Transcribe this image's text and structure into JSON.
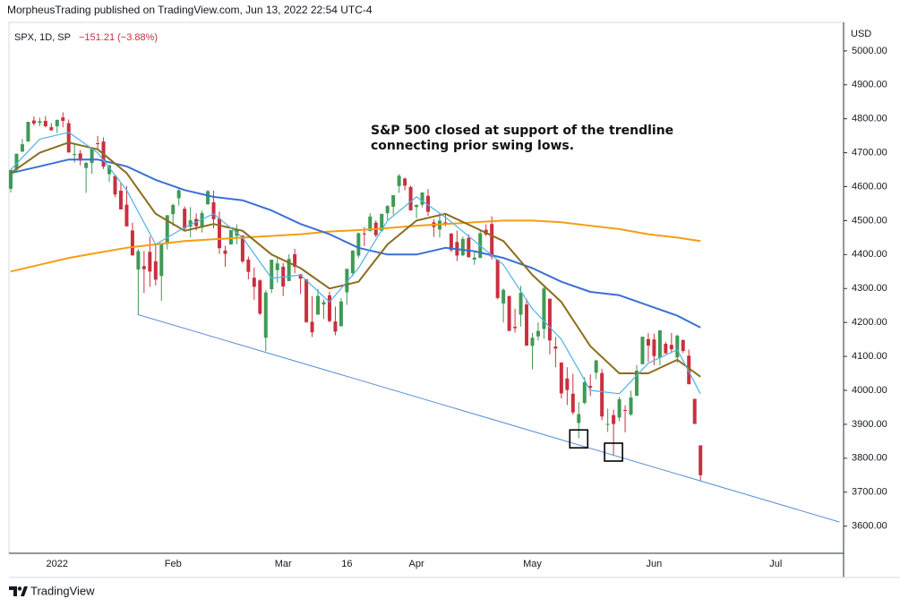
{
  "chart_data": {
    "type": "candlestick",
    "header": "MorpheusTrading published on TradingView.com, Jun 13, 2022 22:54 UTC-4",
    "symbol": "SPX, 1D, SP",
    "change": "−151.21 (−3.88%)",
    "currency": "USD",
    "brand": "TradingView",
    "annotation": {
      "lines": [
        "S&P 500 closed at support of the trendline",
        "connecting prior swing lows."
      ]
    },
    "categories": [
      null,
      null,
      null,
      null,
      null,
      null,
      null,
      null,
      "2022",
      null,
      null,
      null,
      null,
      null,
      null,
      null,
      null,
      null,
      null,
      null,
      null,
      null,
      null,
      null,
      null,
      null,
      null,
      null,
      "Feb",
      null,
      null,
      null,
      null,
      null,
      null,
      null,
      null,
      null,
      null,
      null,
      null,
      null,
      null,
      null,
      null,
      null,
      null,
      "Mar",
      null,
      null,
      null,
      null,
      null,
      null,
      null,
      null,
      null,
      null,
      "16",
      null,
      null,
      null,
      null,
      null,
      null,
      null,
      null,
      null,
      null,
      null,
      "Apr",
      null,
      null,
      null,
      null,
      null,
      null,
      null,
      null,
      null,
      null,
      null,
      null,
      null,
      null,
      null,
      null,
      null,
      null,
      null,
      "May",
      null,
      null,
      null,
      null,
      null,
      null,
      null,
      null,
      null,
      null,
      null,
      null,
      null,
      null,
      null,
      null,
      null,
      null,
      null,
      null,
      "Jun",
      null,
      null,
      null,
      null,
      null,
      null,
      null,
      null,
      null,
      null,
      null,
      null,
      null,
      null,
      null,
      null,
      null,
      null,
      null,
      null,
      "Jul",
      null,
      null,
      null,
      null,
      null,
      null,
      null,
      null,
      null,
      null,
      null
    ],
    "open": [
      4594,
      4650,
      4703,
      4733,
      4795,
      4788,
      4794,
      4775,
      4778,
      4804,
      4787,
      4693,
      4698,
      4655,
      4670,
      4728,
      4733,
      4637,
      4632,
      4588,
      4547,
      4471,
      4356,
      4366,
      4408,
      4380,
      4337,
      4431,
      4519,
      4566,
      4535,
      4482,
      4505,
      4480,
      4548,
      4554,
      4506,
      4412,
      4430,
      4455,
      4456,
      4385,
      4332,
      4324,
      4155,
      4298,
      4354,
      4364,
      4322,
      4401,
      4342,
      4327,
      4202,
      4223,
      4253,
      4280,
      4203,
      4189,
      4289,
      4345,
      4397,
      4462,
      4469,
      4494,
      4470,
      4522,
      4541,
      4602,
      4624,
      4599,
      4540,
      4547,
      4573,
      4495,
      4474,
      4495,
      4462,
      4437,
      4398,
      4449,
      4385,
      4390,
      4473,
      4490,
      4385,
      4256,
      4278,
      4187,
      4223,
      4253,
      4131,
      4159,
      4181,
      4270,
      4129,
      4082,
      4035,
      3990,
      3904,
      3963,
      4013,
      4052,
      4051,
      3900,
      3927,
      3920,
      3942,
      3929,
      3984,
      4077,
      4151,
      4150,
      4096,
      4137,
      4134,
      4097,
      4148,
      4102,
      3975,
      3838,
      null,
      null,
      null,
      null,
      null,
      null,
      null,
      null,
      null,
      null,
      null,
      null,
      null,
      null,
      null,
      null,
      null,
      null,
      null,
      null,
      null,
      null,
      null,
      null
    ],
    "high": [
      4651,
      4697,
      4740,
      4791,
      4807,
      4804,
      4808,
      4787,
      4797,
      4819,
      4798,
      4725,
      4708,
      4673,
      4714,
      4749,
      4745,
      4665,
      4632,
      4612,
      4602,
      4494,
      4417,
      4411,
      4453,
      4428,
      4432,
      4516,
      4550,
      4595,
      4542,
      4540,
      4521,
      4530,
      4590,
      4588,
      4527,
      4426,
      4472,
      4489,
      4456,
      4394,
      4362,
      4327,
      4295,
      4385,
      4389,
      4375,
      4401,
      4417,
      4343,
      4328,
      4277,
      4299,
      4268,
      4291,
      4247,
      4272,
      4358,
      4412,
      4465,
      4481,
      4522,
      4501,
      4520,
      4546,
      4575,
      4637,
      4627,
      4603,
      4548,
      4583,
      4593,
      4504,
      4521,
      4521,
      4463,
      4471,
      4453,
      4460,
      4411,
      4471,
      4489,
      4513,
      4386,
      4300,
      4278,
      4240,
      4308,
      4270,
      4169,
      4200,
      4308,
      4270,
      4157,
      4082,
      4068,
      4049,
      3965,
      4039,
      4047,
      4090,
      4063,
      3946,
      3943,
      3981,
      3956,
      3999,
      4075,
      4158,
      4169,
      4167,
      4177,
      4143,
      4169,
      4164,
      4150,
      4120,
      3975,
      3838,
      null,
      null,
      null,
      null,
      null,
      null,
      null,
      null,
      null,
      null,
      null,
      null,
      null,
      null,
      null,
      null,
      null,
      null,
      null,
      null,
      null,
      null,
      null,
      null
    ],
    "low": [
      4583,
      4645,
      4703,
      4733,
      4780,
      4778,
      4775,
      4765,
      4758,
      4775,
      4700,
      4671,
      4663,
      4582,
      4638,
      4711,
      4652,
      4614,
      4569,
      4533,
      4483,
      4396,
      4223,
      4287,
      4305,
      4309,
      4264,
      4415,
      4484,
      4544,
      4470,
      4451,
      4471,
      4465,
      4547,
      4477,
      4402,
      4364,
      4429,
      4430,
      4374,
      4327,
      4267,
      4222,
      4115,
      4287,
      4317,
      4278,
      4322,
      4345,
      4284,
      4199,
      4157,
      4223,
      4210,
      4200,
      4162,
      4188,
      4252,
      4336,
      4390,
      4425,
      4469,
      4452,
      4468,
      4501,
      4518,
      4582,
      4589,
      4530,
      4507,
      4539,
      4514,
      4452,
      4450,
      4484,
      4408,
      4381,
      4395,
      4392,
      4370,
      4390,
      4455,
      4385,
      4268,
      4200,
      4175,
      4170,
      4188,
      4131,
      4062,
      4147,
      4152,
      4106,
      4068,
      3976,
      3957,
      3928,
      3859,
      3959,
      3983,
      4033,
      3912,
      3877,
      3810,
      3909,
      3876,
      3925,
      3984,
      4077,
      4084,
      4074,
      4074,
      4107,
      4110,
      4081,
      4110,
      4018,
      3901,
      3735,
      null,
      null,
      null,
      null,
      null,
      null,
      null,
      null,
      null,
      null,
      null,
      null,
      null,
      null,
      null,
      null,
      null,
      null,
      null,
      null,
      null,
      null,
      null,
      null
    ],
    "close": [
      4649,
      4697,
      4725,
      4791,
      4786,
      4793,
      4778,
      4766,
      4797,
      4794,
      4701,
      4696,
      4677,
      4670,
      4713,
      4726,
      4659,
      4663,
      4577,
      4533,
      4483,
      4398,
      4410,
      4357,
      4350,
      4326,
      4432,
      4516,
      4546,
      4589,
      4477,
      4501,
      4484,
      4522,
      4587,
      4504,
      4419,
      4402,
      4472,
      4475,
      4380,
      4349,
      4305,
      4226,
      4288,
      4385,
      4374,
      4306,
      4387,
      4364,
      4329,
      4201,
      4171,
      4278,
      4260,
      4204,
      4173,
      4262,
      4358,
      4412,
      4463,
      4461,
      4512,
      4457,
      4520,
      4543,
      4575,
      4632,
      4603,
      4530,
      4546,
      4583,
      4526,
      4481,
      4500,
      4488,
      4413,
      4397,
      4446,
      4392,
      4391,
      4463,
      4459,
      4394,
      4272,
      4296,
      4175,
      4183,
      4288,
      4132,
      4155,
      4175,
      4300,
      4147,
      4123,
      3991,
      4001,
      3935,
      3930,
      4024,
      4008,
      4088,
      3923,
      3901,
      3901,
      3974,
      3941,
      3979,
      4058,
      4158,
      4132,
      4101,
      4177,
      4109,
      4121,
      4161,
      4116,
      4018,
      3901,
      3750,
      null,
      null,
      null,
      null,
      null,
      null,
      null,
      null,
      null,
      null,
      null,
      null,
      null,
      null,
      null,
      null,
      null,
      null,
      null,
      null,
      null,
      null,
      null,
      null
    ],
    "up_color": "#3f9a55",
    "down_color": "#c9303f",
    "ylim": [
      3520,
      5084
    ],
    "yticks": [
      {
        "value": 3600,
        "label": "3600.00"
      },
      {
        "value": 3700,
        "label": "3700.00"
      },
      {
        "value": 3800,
        "label": "3800.00"
      },
      {
        "value": 3900,
        "label": "3900.00"
      },
      {
        "value": 4000,
        "label": "4000.00"
      },
      {
        "value": 4100,
        "label": "4100.00"
      },
      {
        "value": 4200,
        "label": "4200.00"
      },
      {
        "value": 4300,
        "label": "4300.00"
      },
      {
        "value": 4400,
        "label": "4400.00"
      },
      {
        "value": 4500,
        "label": "4500.00"
      },
      {
        "value": 4600,
        "label": "4600.00"
      },
      {
        "value": 4700,
        "label": "4700.00"
      },
      {
        "value": 4800,
        "label": "4800.00"
      },
      {
        "value": 4900,
        "label": "4900.00"
      },
      {
        "value": 5000,
        "label": "5000.00"
      }
    ],
    "grid": false,
    "series": [
      {
        "color": "#f59d16",
        "x": [
          0,
          5,
          10,
          15,
          20,
          25,
          30,
          35,
          40,
          45,
          50,
          55,
          60,
          65,
          70,
          75,
          80,
          85,
          90,
          95,
          100,
          105,
          110,
          115,
          119
        ],
        "values": [
          4350,
          4370,
          4390,
          4405,
          4420,
          4430,
          4440,
          4445,
          4450,
          4455,
          4460,
          4468,
          4472,
          4478,
          4485,
          4490,
          4495,
          4500,
          4500,
          4495,
          4485,
          4475,
          4460,
          4450,
          4440
        ]
      },
      {
        "color": "#3a6fd6",
        "x": [
          0,
          5,
          10,
          15,
          20,
          25,
          30,
          35,
          40,
          45,
          50,
          55,
          60,
          65,
          70,
          75,
          80,
          85,
          90,
          95,
          100,
          105,
          110,
          115,
          119
        ],
        "values": [
          4640,
          4660,
          4680,
          4680,
          4660,
          4620,
          4590,
          4570,
          4560,
          4530,
          4490,
          4460,
          4420,
          4400,
          4400,
          4420,
          4410,
          4390,
          4360,
          4320,
          4290,
          4280,
          4250,
          4220,
          4185
        ]
      },
      {
        "color": "#8b6d1e",
        "x": [
          0,
          5,
          10,
          15,
          20,
          25,
          30,
          35,
          40,
          45,
          50,
          55,
          60,
          65,
          70,
          75,
          80,
          85,
          90,
          95,
          100,
          105,
          110,
          115,
          119
        ],
        "values": [
          4640,
          4700,
          4730,
          4710,
          4640,
          4520,
          4470,
          4490,
          4470,
          4400,
          4360,
          4300,
          4320,
          4430,
          4500,
          4520,
          4480,
          4440,
          4340,
          4260,
          4130,
          4050,
          4050,
          4090,
          4040
        ]
      },
      {
        "color": "#4fb3e8",
        "x": [
          0,
          5,
          10,
          15,
          20,
          25,
          30,
          35,
          40,
          45,
          50,
          55,
          60,
          65,
          70,
          75,
          80,
          85,
          90,
          95,
          100,
          105,
          110,
          115,
          119
        ],
        "values": [
          4650,
          4740,
          4760,
          4700,
          4590,
          4430,
          4480,
          4520,
          4450,
          4330,
          4340,
          4260,
          4360,
          4500,
          4570,
          4510,
          4440,
          4370,
          4240,
          4150,
          4000,
          3990,
          4080,
          4120,
          3990
        ]
      }
    ],
    "trendline": {
      "color": "#5b8fd6",
      "x": [
        22,
        143
      ],
      "values": [
        4223,
        3612
      ]
    },
    "markers": {
      "x": [
        98,
        104
      ],
      "values": [
        3857,
        3818
      ]
    }
  }
}
